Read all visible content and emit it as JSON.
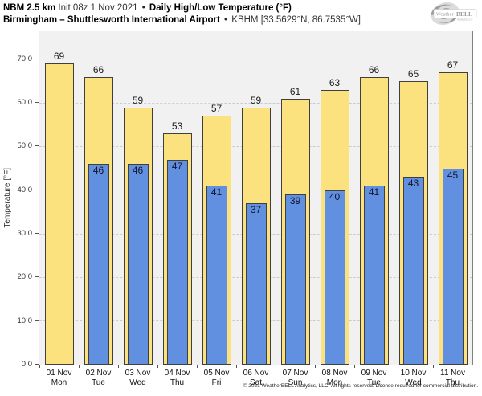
{
  "header": {
    "model": "NBM 2.5 km",
    "init": "Init 08z 1 Nov 2021",
    "sep1": "•",
    "title": "Daily High/Low Temperature (°F)",
    "station": "Birmingham – Shuttlesworth International Airport",
    "sep2": "•",
    "station_code": "KBHM [33.5629°N, 86.7535°W]"
  },
  "logo": {
    "brand_prefix": "Weather",
    "brand_suffix": "BELL",
    "brand_sub": "Analytics LLC"
  },
  "chart_data": {
    "type": "bar",
    "title": "Daily High/Low Temperature (°F)",
    "subtitle": "Birmingham – Shuttlesworth International Airport • KBHM [33.5629°N, 86.7535°W]",
    "xlabel": "",
    "ylabel": "Temperature [°F]",
    "ylim": [
      0,
      76.4
    ],
    "yticks": [
      0,
      10,
      20,
      30,
      40,
      50,
      60,
      70
    ],
    "grid": true,
    "legend": false,
    "categories": [
      "01 Nov",
      "02 Nov",
      "03 Nov",
      "04 Nov",
      "05 Nov",
      "06 Nov",
      "07 Nov",
      "08 Nov",
      "09 Nov",
      "10 Nov",
      "11 Nov"
    ],
    "weekdays": [
      "Mon",
      "Tue",
      "Wed",
      "Thu",
      "Fri",
      "Sat",
      "Sun",
      "Mon",
      "Tue",
      "Wed",
      "Thu"
    ],
    "series": [
      {
        "name": "Daily High",
        "color": "#fce27e",
        "values": [
          69,
          66,
          59,
          53,
          57,
          59,
          61,
          63,
          66,
          65,
          67
        ]
      },
      {
        "name": "Daily Low",
        "color": "#6190e0",
        "values": [
          null,
          46,
          46,
          47,
          41,
          37,
          39,
          40,
          41,
          43,
          45
        ]
      }
    ]
  },
  "footer": {
    "copyright": "© 2021 WeatherBELL Analytics, LLC. All rights reserved. License required for commercial distribution."
  }
}
